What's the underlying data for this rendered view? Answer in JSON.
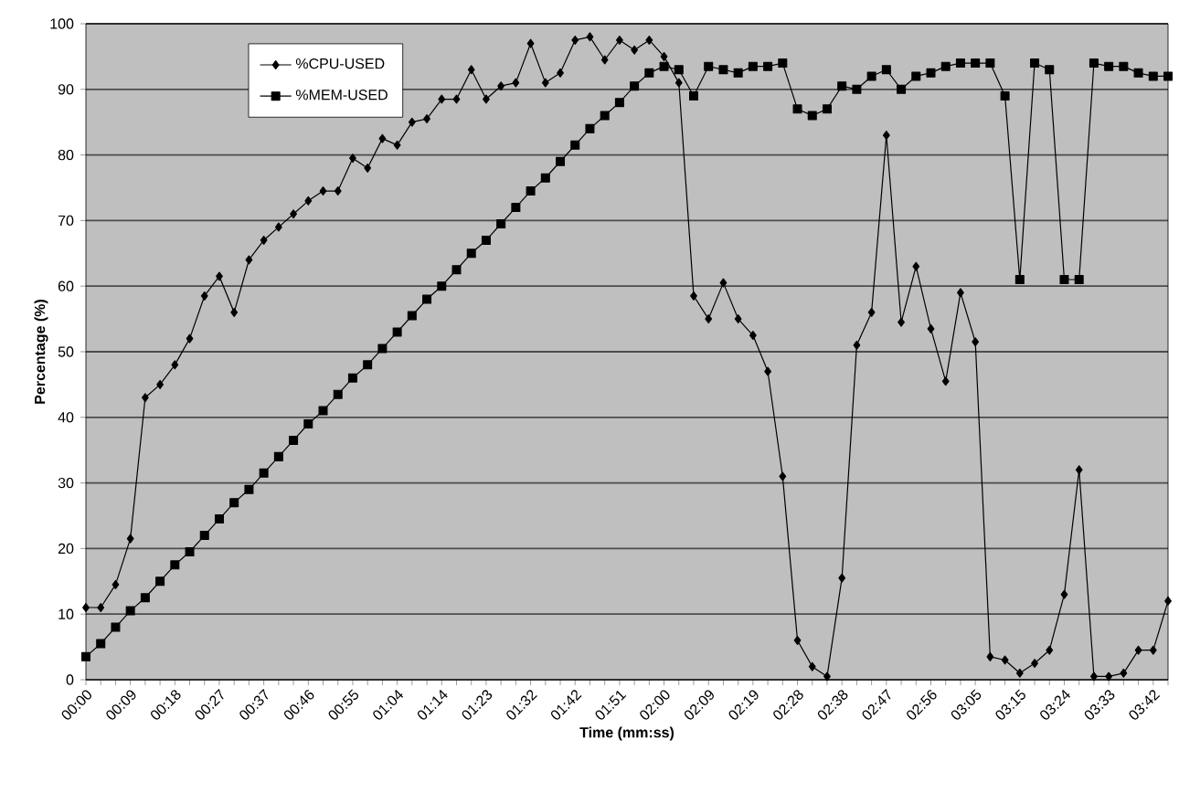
{
  "chart_data": {
    "type": "line",
    "xlabel": "Time (mm:ss)",
    "ylabel": "Percentage (%)",
    "categories": [
      "00:00",
      null,
      null,
      "00:09",
      null,
      null,
      "00:18",
      null,
      null,
      "00:27",
      null,
      null,
      "00:37",
      null,
      null,
      "00:46",
      null,
      null,
      "00:55",
      null,
      null,
      "01:04",
      null,
      null,
      "01:14",
      null,
      null,
      "01:23",
      null,
      null,
      "01:32",
      null,
      null,
      "01:42",
      null,
      null,
      "01:51",
      null,
      null,
      "02:00",
      null,
      null,
      "02:09",
      null,
      null,
      "02:19",
      null,
      null,
      "02:28",
      null,
      null,
      "02:38",
      null,
      null,
      "02:47",
      null,
      null,
      "02:56",
      null,
      null,
      "03:05",
      null,
      null,
      "03:15",
      null,
      null,
      "03:24",
      null,
      null,
      "03:33",
      null,
      null,
      "03:42",
      null
    ],
    "series": [
      {
        "name": "%CPU-USED",
        "color": "#000000",
        "marker": "diamond",
        "values": [
          11,
          11,
          14.5,
          21.5,
          43,
          45,
          48,
          52,
          58.5,
          61.5,
          56,
          64,
          67,
          69,
          71,
          73,
          74.5,
          74.5,
          79.5,
          78,
          82.5,
          81.5,
          85,
          85.5,
          88.5,
          88.5,
          93,
          88.5,
          90.5,
          91,
          97,
          91,
          92.5,
          97.5,
          98,
          94.5,
          97.5,
          96,
          97.5,
          95,
          91,
          58.5,
          55,
          60.5,
          55,
          52.5,
          47,
          31,
          6,
          2,
          0.5,
          15.5,
          51,
          56,
          83,
          54.5,
          63,
          53.5,
          45.5,
          59,
          51.5,
          3.5,
          3,
          1,
          2.5,
          4.5,
          13,
          32,
          0.5,
          0.5,
          1,
          4.5,
          4.5,
          12
        ]
      },
      {
        "name": "%MEM-USED",
        "color": "#000000",
        "marker": "square",
        "values": [
          3.5,
          5.5,
          8,
          10.5,
          12.5,
          15,
          17.5,
          19.5,
          22,
          24.5,
          27,
          29,
          31.5,
          34,
          36.5,
          39,
          41,
          43.5,
          46,
          48,
          50.5,
          53,
          55.5,
          58,
          60,
          62.5,
          65,
          67,
          69.5,
          72,
          74.5,
          76.5,
          79,
          81.5,
          84,
          86,
          88,
          90.5,
          92.5,
          93.5,
          93,
          89,
          93.5,
          93,
          92.5,
          93.5,
          93.5,
          94,
          87,
          86,
          87,
          90.5,
          90,
          92,
          93,
          90,
          92,
          92.5,
          93.5,
          94,
          94,
          94,
          89,
          61,
          94,
          93,
          61,
          61,
          94,
          93.5,
          93.5,
          92.5,
          92,
          92
        ]
      }
    ],
    "ylim": [
      0,
      100
    ],
    "yticks": [
      0,
      10,
      20,
      30,
      40,
      50,
      60,
      70,
      80,
      90,
      100
    ],
    "grid": "y",
    "legend": "top left",
    "line_style": "solid"
  }
}
